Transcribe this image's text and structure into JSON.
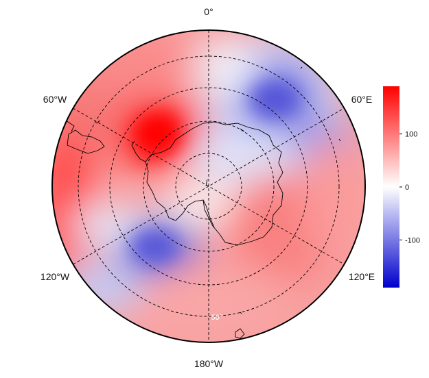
{
  "map": {
    "projection": "south polar stereographic",
    "longitude_labels": {
      "top": "0°",
      "upper_left": "60°W",
      "upper_right": "60°E",
      "lower_left": "120°W",
      "lower_right": "120°E",
      "bottom": "180°W"
    },
    "latitude_labels": [
      "50°"
    ],
    "field_colors": {
      "high": "#ff0000",
      "mid": "#ffffff",
      "low": "#0000cc"
    }
  },
  "colorbar": {
    "range": [
      -190,
      190
    ],
    "ticks": [
      {
        "value": 100,
        "label": "100"
      },
      {
        "value": 0,
        "label": "0"
      },
      {
        "value": -100,
        "label": "-100"
      }
    ],
    "colors": {
      "top": "#ff0000",
      "middle": "#ffffff",
      "bottom": "#0000cc"
    }
  }
}
